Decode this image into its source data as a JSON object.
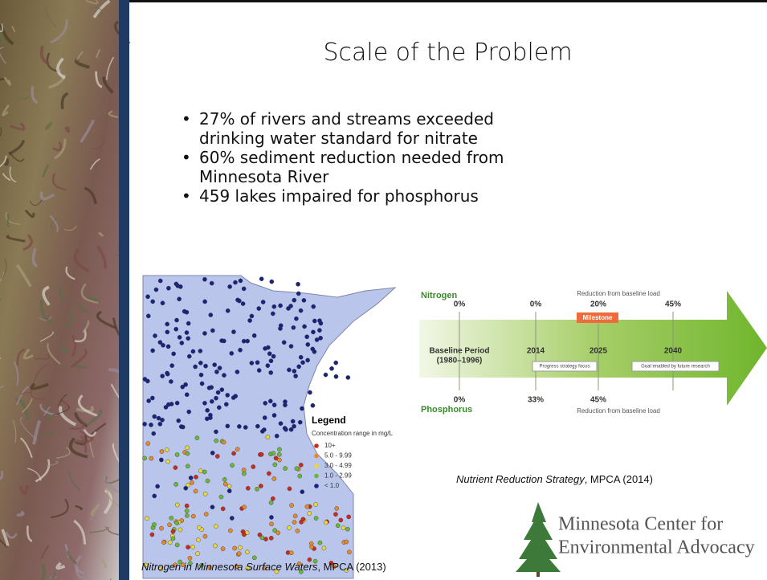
{
  "slide": {
    "title": "Scale of the Problem",
    "bullets": [
      "27% of rivers and streams exceeded drinking water standard for nitrate",
      "60% sediment reduction needed from Minnesota River",
      "459 lakes impaired for phosphorus"
    ]
  },
  "map": {
    "legend_title": "Legend",
    "legend_subtitle": "Concentration range in mg/L",
    "legend_items": [
      "10+",
      "5.0 - 9.99",
      "3.0 - 4.99",
      "1.0 - 2.99",
      "< 1.0"
    ],
    "caption_title": "Nitrogen in Minnesota Surface Waters",
    "caption_source": ", MPCA (2013)"
  },
  "diagram": {
    "nitrogen_label": "Nitrogen",
    "phosphorus_label": "Phosphorus",
    "top_note": "Reduction from baseline load",
    "bottom_note": "Reduction from baseline load",
    "nitrogen_values": [
      "0%",
      "0%",
      "20%",
      "45%"
    ],
    "milestone": "Milestone",
    "baseline": "Baseline Period",
    "baseline_years": "(1980–1996)",
    "years": [
      "2014",
      "2025",
      "2040"
    ],
    "box_progress": "Progress strategy focus",
    "box_goal": "Goal enabled by future research",
    "phosphorus_values": [
      "0%",
      "33%",
      "45%"
    ],
    "caption_title": "Nutrient Reduction Strategy",
    "caption_source": ", MPCA (2014)"
  },
  "logo": {
    "line1": "Minnesota Center for",
    "line2": "Environmental Advocacy"
  }
}
